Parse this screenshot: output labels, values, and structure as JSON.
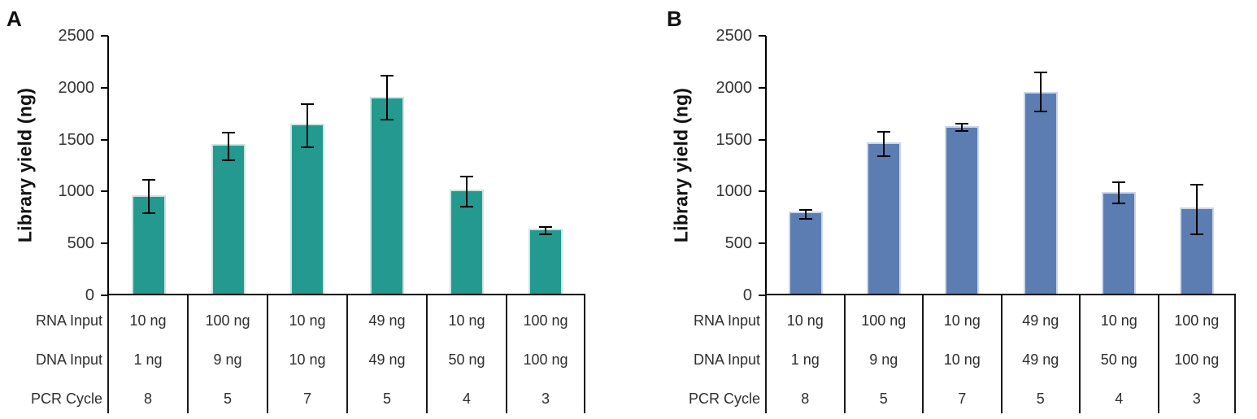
{
  "chart_data": [
    {
      "type": "bar",
      "panel_label": "A",
      "ylabel": "Library yield (ng)",
      "ylim": [
        0,
        2500
      ],
      "yticks": [
        0,
        500,
        1000,
        1500,
        2000,
        2500
      ],
      "grid": false,
      "legend": false,
      "bar_color": "#23998F",
      "bar_edge_color": "#C9E6E2",
      "values": [
        950,
        1440,
        1640,
        1900,
        1000,
        630
      ],
      "error_high": [
        1110,
        1570,
        1840,
        2115,
        1145,
        660
      ],
      "error_low": [
        790,
        1300,
        1430,
        1695,
        855,
        590
      ],
      "x_table": {
        "row_labels": [
          "RNA Input",
          "DNA Input",
          "PCR Cycle"
        ],
        "rows": [
          [
            "10 ng",
            "100 ng",
            "10 ng",
            "49 ng",
            "10 ng",
            "100 ng"
          ],
          [
            "1 ng",
            "9 ng",
            "10 ng",
            "49 ng",
            "50 ng",
            "100 ng"
          ],
          [
            "8",
            "5",
            "7",
            "5",
            "4",
            "3"
          ]
        ]
      }
    },
    {
      "type": "bar",
      "panel_label": "B",
      "ylabel": "Library yield (ng)",
      "ylim": [
        0,
        2500
      ],
      "yticks": [
        0,
        500,
        1000,
        1500,
        2000,
        2500
      ],
      "grid": false,
      "legend": false,
      "bar_color": "#5B7DB1",
      "bar_edge_color": "#CBD6E9",
      "values": [
        790,
        1460,
        1615,
        1945,
        980,
        830
      ],
      "error_high": [
        825,
        1575,
        1650,
        2145,
        1090,
        1065
      ],
      "error_low": [
        740,
        1340,
        1580,
        1770,
        885,
        590
      ],
      "x_table": {
        "row_labels": [
          "RNA Input",
          "DNA Input",
          "PCR Cycle"
        ],
        "rows": [
          [
            "10 ng",
            "100 ng",
            "10 ng",
            "49 ng",
            "10 ng",
            "100 ng"
          ],
          [
            "1 ng",
            "9 ng",
            "10 ng",
            "49 ng",
            "50 ng",
            "100 ng"
          ],
          [
            "8",
            "5",
            "7",
            "5",
            "4",
            "3"
          ]
        ]
      }
    }
  ]
}
